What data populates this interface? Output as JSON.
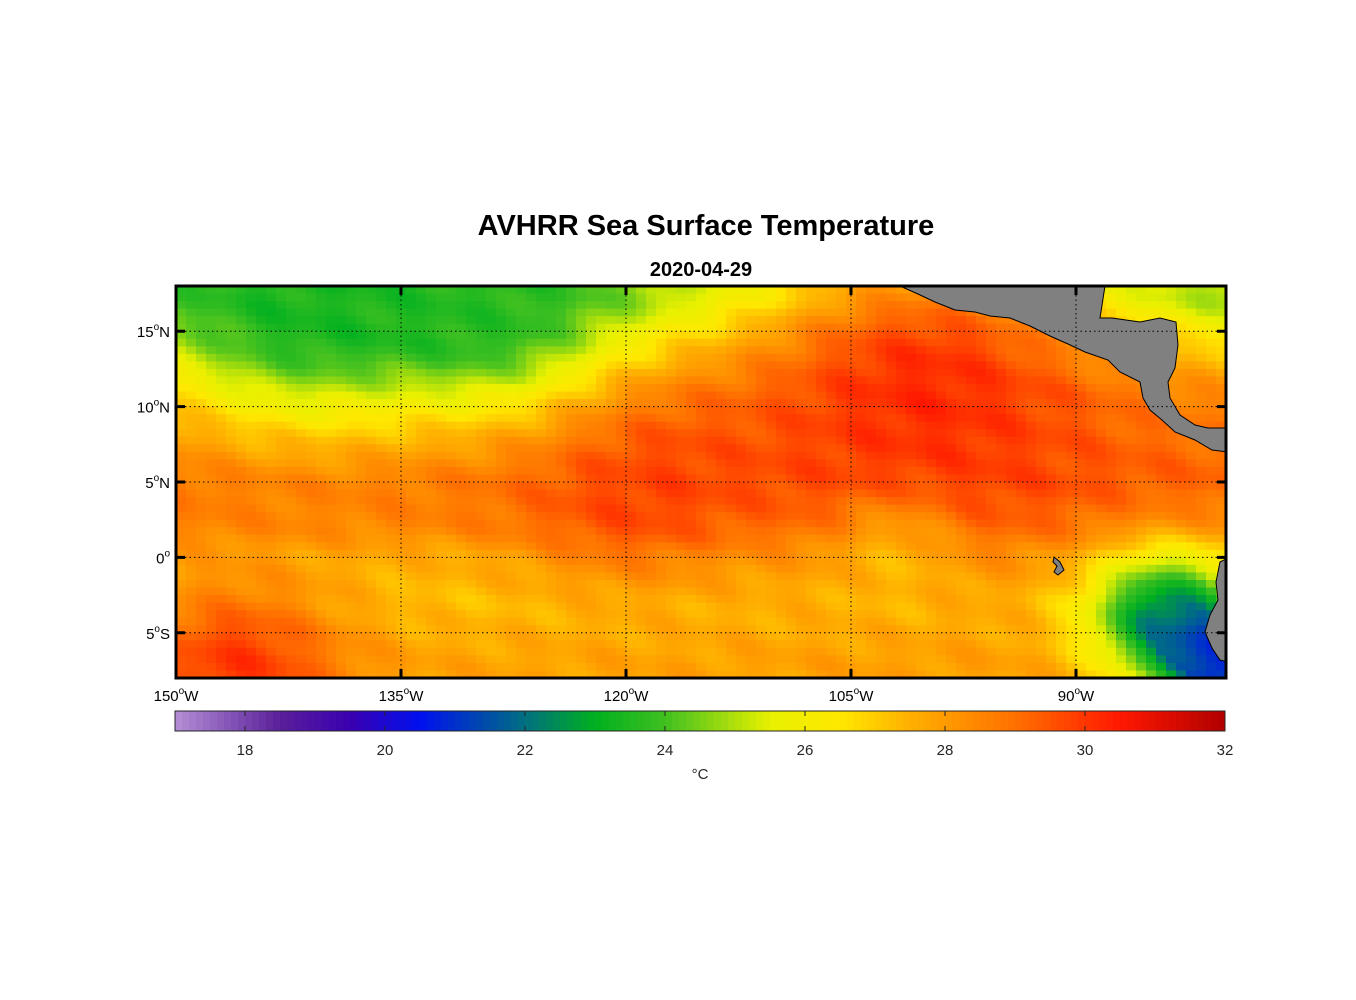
{
  "chart_data": {
    "type": "heatmap",
    "title": "AVHRR Sea Surface Temperature",
    "subtitle": "2020-04-29",
    "x_axis": {
      "range": [
        -150,
        -80
      ],
      "ticks": [
        {
          "value": -150,
          "deg": "150",
          "hemi": "W"
        },
        {
          "value": -135,
          "deg": "135",
          "hemi": "W"
        },
        {
          "value": -120,
          "deg": "120",
          "hemi": "W"
        },
        {
          "value": -105,
          "deg": "105",
          "hemi": "W"
        },
        {
          "value": -90,
          "deg": "90",
          "hemi": "W"
        }
      ]
    },
    "y_axis": {
      "range": [
        -8,
        18
      ],
      "ticks": [
        {
          "value": 15,
          "deg": "15",
          "hemi": "N"
        },
        {
          "value": 10,
          "deg": "10",
          "hemi": "N"
        },
        {
          "value": 5,
          "deg": "5",
          "hemi": "N"
        },
        {
          "value": 0,
          "deg": "0",
          "hemi": ""
        },
        {
          "value": -5,
          "deg": "5",
          "hemi": "S"
        }
      ]
    },
    "grid": true,
    "colorbar": {
      "range": [
        17,
        32
      ],
      "ticks": [
        "18",
        "20",
        "22",
        "24",
        "26",
        "28",
        "30",
        "32"
      ],
      "tick_values": [
        18,
        20,
        22,
        24,
        26,
        28,
        30,
        32
      ],
      "label": "°C",
      "colormap": [
        [
          17,
          "#b48fd6"
        ],
        [
          18.5,
          "#5a1f9a"
        ],
        [
          19.5,
          "#3a00b0"
        ],
        [
          20.5,
          "#0010f0"
        ],
        [
          22,
          "#007080"
        ],
        [
          23,
          "#00b020"
        ],
        [
          24,
          "#40c020"
        ],
        [
          25.5,
          "#e8f000"
        ],
        [
          26.5,
          "#ffe800"
        ],
        [
          27.5,
          "#ffb000"
        ],
        [
          29,
          "#ff7000"
        ],
        [
          30.5,
          "#ff1800"
        ],
        [
          32,
          "#b00000"
        ]
      ]
    },
    "sst_field": {
      "description_units": "degrees C",
      "bands": [
        {
          "lat": 17,
          "sst": 24.5
        },
        {
          "lat": 14,
          "sst": 26.5
        },
        {
          "lat": 11,
          "sst": 28.2
        },
        {
          "lat": 8,
          "sst": 28.8
        },
        {
          "lat": 5,
          "sst": 29.2
        },
        {
          "lat": 2,
          "sst": 28.6
        },
        {
          "lat": 0,
          "sst": 27.6
        },
        {
          "lat": -3,
          "sst": 27.2
        },
        {
          "lat": -7,
          "sst": 27.8
        }
      ],
      "anomalies": [
        {
          "lon": -142,
          "lat": 17,
          "sst": 23.4,
          "r": 7
        },
        {
          "lon": -128,
          "lat": 17,
          "sst": 23.6,
          "r": 6
        },
        {
          "lon": -100,
          "lat": 11,
          "sst": 30.2,
          "r": 9
        },
        {
          "lon": -120,
          "lat": 5,
          "sst": 29.8,
          "r": 5
        },
        {
          "lon": -84,
          "lat": -4,
          "sst": 22.0,
          "r": 3.5
        },
        {
          "lon": -81,
          "lat": -6.5,
          "sst": 20.5,
          "r": 2
        },
        {
          "lon": -146,
          "lat": -7.5,
          "sst": 30.0,
          "r": 5
        },
        {
          "lon": -102,
          "lat": 0,
          "sst": 26.6,
          "r": 3
        }
      ]
    }
  }
}
